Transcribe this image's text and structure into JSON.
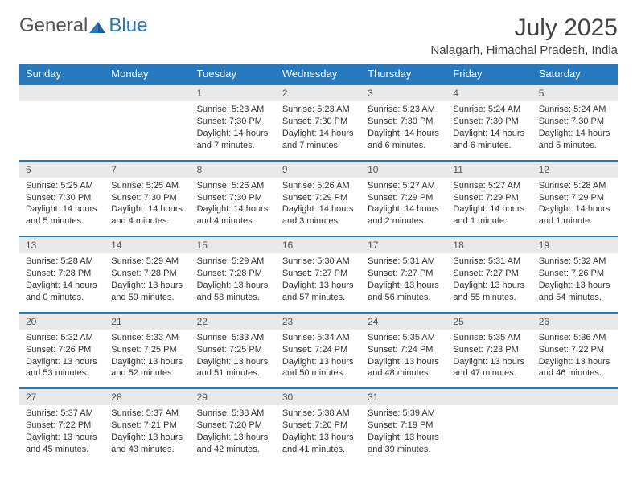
{
  "logo": {
    "text1": "General",
    "text2": "Blue"
  },
  "title": "July 2025",
  "subtitle": "Nalagarh, Himachal Pradesh, India",
  "colors": {
    "header_bg": "#2878bd",
    "header_text": "#ffffff",
    "day_row_bg": "#e9e9e9",
    "border": "#2878bd",
    "text": "#333333",
    "logo_blue": "#2878bd"
  },
  "day_headers": [
    "Sunday",
    "Monday",
    "Tuesday",
    "Wednesday",
    "Thursday",
    "Friday",
    "Saturday"
  ],
  "weeks": [
    [
      null,
      null,
      {
        "n": "1",
        "sr": "5:23 AM",
        "ss": "7:30 PM",
        "dl": "14 hours and 7 minutes."
      },
      {
        "n": "2",
        "sr": "5:23 AM",
        "ss": "7:30 PM",
        "dl": "14 hours and 7 minutes."
      },
      {
        "n": "3",
        "sr": "5:23 AM",
        "ss": "7:30 PM",
        "dl": "14 hours and 6 minutes."
      },
      {
        "n": "4",
        "sr": "5:24 AM",
        "ss": "7:30 PM",
        "dl": "14 hours and 6 minutes."
      },
      {
        "n": "5",
        "sr": "5:24 AM",
        "ss": "7:30 PM",
        "dl": "14 hours and 5 minutes."
      }
    ],
    [
      {
        "n": "6",
        "sr": "5:25 AM",
        "ss": "7:30 PM",
        "dl": "14 hours and 5 minutes."
      },
      {
        "n": "7",
        "sr": "5:25 AM",
        "ss": "7:30 PM",
        "dl": "14 hours and 4 minutes."
      },
      {
        "n": "8",
        "sr": "5:26 AM",
        "ss": "7:30 PM",
        "dl": "14 hours and 4 minutes."
      },
      {
        "n": "9",
        "sr": "5:26 AM",
        "ss": "7:29 PM",
        "dl": "14 hours and 3 minutes."
      },
      {
        "n": "10",
        "sr": "5:27 AM",
        "ss": "7:29 PM",
        "dl": "14 hours and 2 minutes."
      },
      {
        "n": "11",
        "sr": "5:27 AM",
        "ss": "7:29 PM",
        "dl": "14 hours and 1 minute."
      },
      {
        "n": "12",
        "sr": "5:28 AM",
        "ss": "7:29 PM",
        "dl": "14 hours and 1 minute."
      }
    ],
    [
      {
        "n": "13",
        "sr": "5:28 AM",
        "ss": "7:28 PM",
        "dl": "14 hours and 0 minutes."
      },
      {
        "n": "14",
        "sr": "5:29 AM",
        "ss": "7:28 PM",
        "dl": "13 hours and 59 minutes."
      },
      {
        "n": "15",
        "sr": "5:29 AM",
        "ss": "7:28 PM",
        "dl": "13 hours and 58 minutes."
      },
      {
        "n": "16",
        "sr": "5:30 AM",
        "ss": "7:27 PM",
        "dl": "13 hours and 57 minutes."
      },
      {
        "n": "17",
        "sr": "5:31 AM",
        "ss": "7:27 PM",
        "dl": "13 hours and 56 minutes."
      },
      {
        "n": "18",
        "sr": "5:31 AM",
        "ss": "7:27 PM",
        "dl": "13 hours and 55 minutes."
      },
      {
        "n": "19",
        "sr": "5:32 AM",
        "ss": "7:26 PM",
        "dl": "13 hours and 54 minutes."
      }
    ],
    [
      {
        "n": "20",
        "sr": "5:32 AM",
        "ss": "7:26 PM",
        "dl": "13 hours and 53 minutes."
      },
      {
        "n": "21",
        "sr": "5:33 AM",
        "ss": "7:25 PM",
        "dl": "13 hours and 52 minutes."
      },
      {
        "n": "22",
        "sr": "5:33 AM",
        "ss": "7:25 PM",
        "dl": "13 hours and 51 minutes."
      },
      {
        "n": "23",
        "sr": "5:34 AM",
        "ss": "7:24 PM",
        "dl": "13 hours and 50 minutes."
      },
      {
        "n": "24",
        "sr": "5:35 AM",
        "ss": "7:24 PM",
        "dl": "13 hours and 48 minutes."
      },
      {
        "n": "25",
        "sr": "5:35 AM",
        "ss": "7:23 PM",
        "dl": "13 hours and 47 minutes."
      },
      {
        "n": "26",
        "sr": "5:36 AM",
        "ss": "7:22 PM",
        "dl": "13 hours and 46 minutes."
      }
    ],
    [
      {
        "n": "27",
        "sr": "5:37 AM",
        "ss": "7:22 PM",
        "dl": "13 hours and 45 minutes."
      },
      {
        "n": "28",
        "sr": "5:37 AM",
        "ss": "7:21 PM",
        "dl": "13 hours and 43 minutes."
      },
      {
        "n": "29",
        "sr": "5:38 AM",
        "ss": "7:20 PM",
        "dl": "13 hours and 42 minutes."
      },
      {
        "n": "30",
        "sr": "5:38 AM",
        "ss": "7:20 PM",
        "dl": "13 hours and 41 minutes."
      },
      {
        "n": "31",
        "sr": "5:39 AM",
        "ss": "7:19 PM",
        "dl": "13 hours and 39 minutes."
      },
      null,
      null
    ]
  ],
  "labels": {
    "sunrise": "Sunrise:",
    "sunset": "Sunset:",
    "daylight": "Daylight:"
  }
}
